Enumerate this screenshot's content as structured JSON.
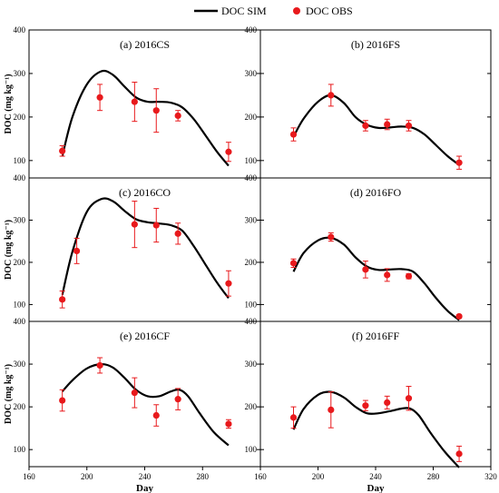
{
  "legend": {
    "sim_label": "DOC SIM",
    "obs_label": "DOC OBS",
    "placement": "top-center"
  },
  "colors": {
    "sim_line": "#000000",
    "obs_marker": "#e8191c",
    "axis": "#000000"
  },
  "chart_data": [
    {
      "type": "line",
      "title": "(a) 2016CS",
      "xlabel": "",
      "ylabel": "DOC (mg kg⁻¹)",
      "xlim": [
        160,
        320
      ],
      "ylim": [
        60,
        400
      ],
      "xticks": [],
      "yticks": [
        100,
        200,
        300,
        400
      ],
      "grid": false,
      "series": [
        {
          "name": "DOC SIM",
          "kind": "line",
          "x": [
            183,
            190,
            200,
            210,
            218,
            226,
            234,
            242,
            250,
            258,
            266,
            274,
            282,
            290,
            298
          ],
          "y": [
            110,
            200,
            275,
            305,
            297,
            270,
            245,
            235,
            235,
            233,
            222,
            195,
            158,
            120,
            88
          ]
        },
        {
          "name": "DOC OBS",
          "kind": "scatter",
          "x": [
            183,
            209,
            233,
            248,
            263,
            298
          ],
          "y": [
            122,
            245,
            235,
            215,
            203,
            120
          ],
          "err": [
            12,
            30,
            45,
            50,
            12,
            22
          ]
        }
      ]
    },
    {
      "type": "line",
      "title": "(b) 2016FS",
      "xlabel": "",
      "ylabel": "",
      "xlim": [
        160,
        320
      ],
      "ylim": [
        60,
        400
      ],
      "xticks": [],
      "yticks": [
        100,
        200,
        300,
        400
      ],
      "grid": false,
      "series": [
        {
          "name": "DOC SIM",
          "kind": "line",
          "x": [
            183,
            190,
            200,
            209,
            218,
            226,
            234,
            242,
            250,
            258,
            266,
            274,
            282,
            290,
            298
          ],
          "y": [
            155,
            196,
            235,
            250,
            232,
            200,
            182,
            175,
            176,
            178,
            175,
            160,
            135,
            110,
            90
          ]
        },
        {
          "name": "DOC OBS",
          "kind": "scatter",
          "x": [
            183,
            209,
            233,
            248,
            263,
            298
          ],
          "y": [
            160,
            250,
            180,
            183,
            180,
            95
          ],
          "err": [
            15,
            25,
            12,
            12,
            12,
            15
          ]
        }
      ]
    },
    {
      "type": "line",
      "title": "(c) 2016CO",
      "xlabel": "",
      "ylabel": "DOC (mg kg⁻¹)",
      "xlim": [
        160,
        320
      ],
      "ylim": [
        60,
        400
      ],
      "xticks": [],
      "yticks": [
        100,
        200,
        300,
        400
      ],
      "grid": false,
      "series": [
        {
          "name": "DOC SIM",
          "kind": "line",
          "x": [
            183,
            190,
            200,
            210,
            218,
            226,
            234,
            242,
            250,
            258,
            266,
            274,
            282,
            290,
            298
          ],
          "y": [
            123,
            225,
            320,
            350,
            345,
            322,
            302,
            295,
            292,
            288,
            275,
            238,
            195,
            152,
            115
          ]
        },
        {
          "name": "DOC OBS",
          "kind": "scatter",
          "x": [
            183,
            193,
            233,
            248,
            263,
            298
          ],
          "y": [
            112,
            227,
            290,
            288,
            268,
            150
          ],
          "err": [
            20,
            30,
            55,
            40,
            25,
            30
          ]
        }
      ]
    },
    {
      "type": "line",
      "title": "(d) 2016FO",
      "xlabel": "",
      "ylabel": "",
      "xlim": [
        160,
        320
      ],
      "ylim": [
        60,
        400
      ],
      "xticks": [],
      "yticks": [
        100,
        200,
        300,
        400
      ],
      "grid": false,
      "series": [
        {
          "name": "DOC SIM",
          "kind": "line",
          "x": [
            183,
            190,
            200,
            209,
            218,
            226,
            234,
            242,
            250,
            258,
            266,
            274,
            282,
            290,
            298
          ],
          "y": [
            178,
            222,
            252,
            258,
            242,
            212,
            190,
            182,
            183,
            184,
            178,
            150,
            115,
            85,
            63
          ]
        },
        {
          "name": "DOC OBS",
          "kind": "scatter",
          "x": [
            183,
            209,
            233,
            248,
            263,
            298
          ],
          "y": [
            198,
            260,
            183,
            170,
            167,
            72
          ],
          "err": [
            10,
            10,
            20,
            15,
            6,
            4
          ]
        }
      ]
    },
    {
      "type": "line",
      "title": "(e) 2016CF",
      "xlabel": "Day",
      "ylabel": "DOC (mg kg⁻¹)",
      "xlim": [
        160,
        320
      ],
      "ylim": [
        60,
        400
      ],
      "xticks": [
        160,
        200,
        240,
        280
      ],
      "yticks": [
        100,
        200,
        300,
        400
      ],
      "grid": false,
      "series": [
        {
          "name": "DOC SIM",
          "kind": "line",
          "x": [
            183,
            190,
            200,
            210,
            218,
            226,
            234,
            242,
            250,
            258,
            264,
            270,
            278,
            288,
            298
          ],
          "y": [
            236,
            262,
            290,
            300,
            292,
            268,
            240,
            225,
            225,
            236,
            240,
            225,
            185,
            140,
            110
          ]
        },
        {
          "name": "DOC OBS",
          "kind": "scatter",
          "x": [
            183,
            209,
            233,
            248,
            263,
            298
          ],
          "y": [
            215,
            297,
            233,
            180,
            218,
            160
          ],
          "err": [
            25,
            18,
            35,
            25,
            25,
            10
          ]
        }
      ]
    },
    {
      "type": "line",
      "title": "(f) 2016FF",
      "xlabel": "Day",
      "ylabel": "",
      "xlim": [
        160,
        320
      ],
      "ylim": [
        60,
        400
      ],
      "xticks": [
        160,
        200,
        240,
        280,
        320
      ],
      "yticks": [
        100,
        200,
        300,
        400
      ],
      "grid": false,
      "series": [
        {
          "name": "DOC SIM",
          "kind": "line",
          "x": [
            183,
            190,
            200,
            209,
            218,
            226,
            234,
            242,
            250,
            258,
            264,
            270,
            278,
            288,
            298
          ],
          "y": [
            147,
            195,
            228,
            235,
            222,
            200,
            185,
            185,
            190,
            196,
            196,
            180,
            140,
            95,
            58
          ]
        },
        {
          "name": "DOC OBS",
          "kind": "scatter",
          "x": [
            183,
            209,
            233,
            248,
            263,
            298
          ],
          "y": [
            175,
            193,
            203,
            210,
            220,
            90
          ],
          "err": [
            25,
            42,
            12,
            15,
            28,
            18
          ]
        }
      ]
    }
  ]
}
